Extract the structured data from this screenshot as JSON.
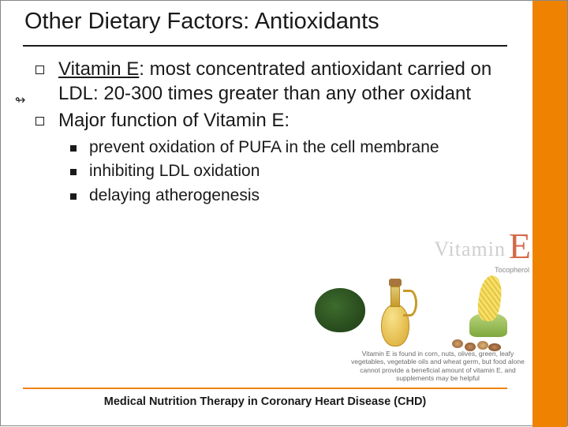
{
  "title": "Other Dietary Factors: Antioxidants",
  "bullets": [
    {
      "prefix": "Vitamin E",
      "rest": ": most concentrated antioxidant carried on LDL: 20-300 times greater than any other oxidant"
    },
    {
      "rest": "Major function of Vitamin E:"
    }
  ],
  "sub_bullets": [
    "prevent oxidation of PUFA in the cell membrane",
    "inhibiting LDL oxidation",
    "delaying atherogenesis"
  ],
  "image": {
    "title_word": "Vitamin",
    "title_letter": "E",
    "subtitle": "Tocopherol",
    "caption": "Vitamin E is found in corn, nuts, olives, green, leafy vegetables, vegetable oils and wheat germ, but food alone cannot provide a beneficial amount of vitamin E, and supplements may be helpful"
  },
  "footer": "Medical Nutrition Therapy in Coronary Heart Disease (CHD)",
  "colors": {
    "accent": "#ef8200",
    "text": "#1a1a1a"
  }
}
